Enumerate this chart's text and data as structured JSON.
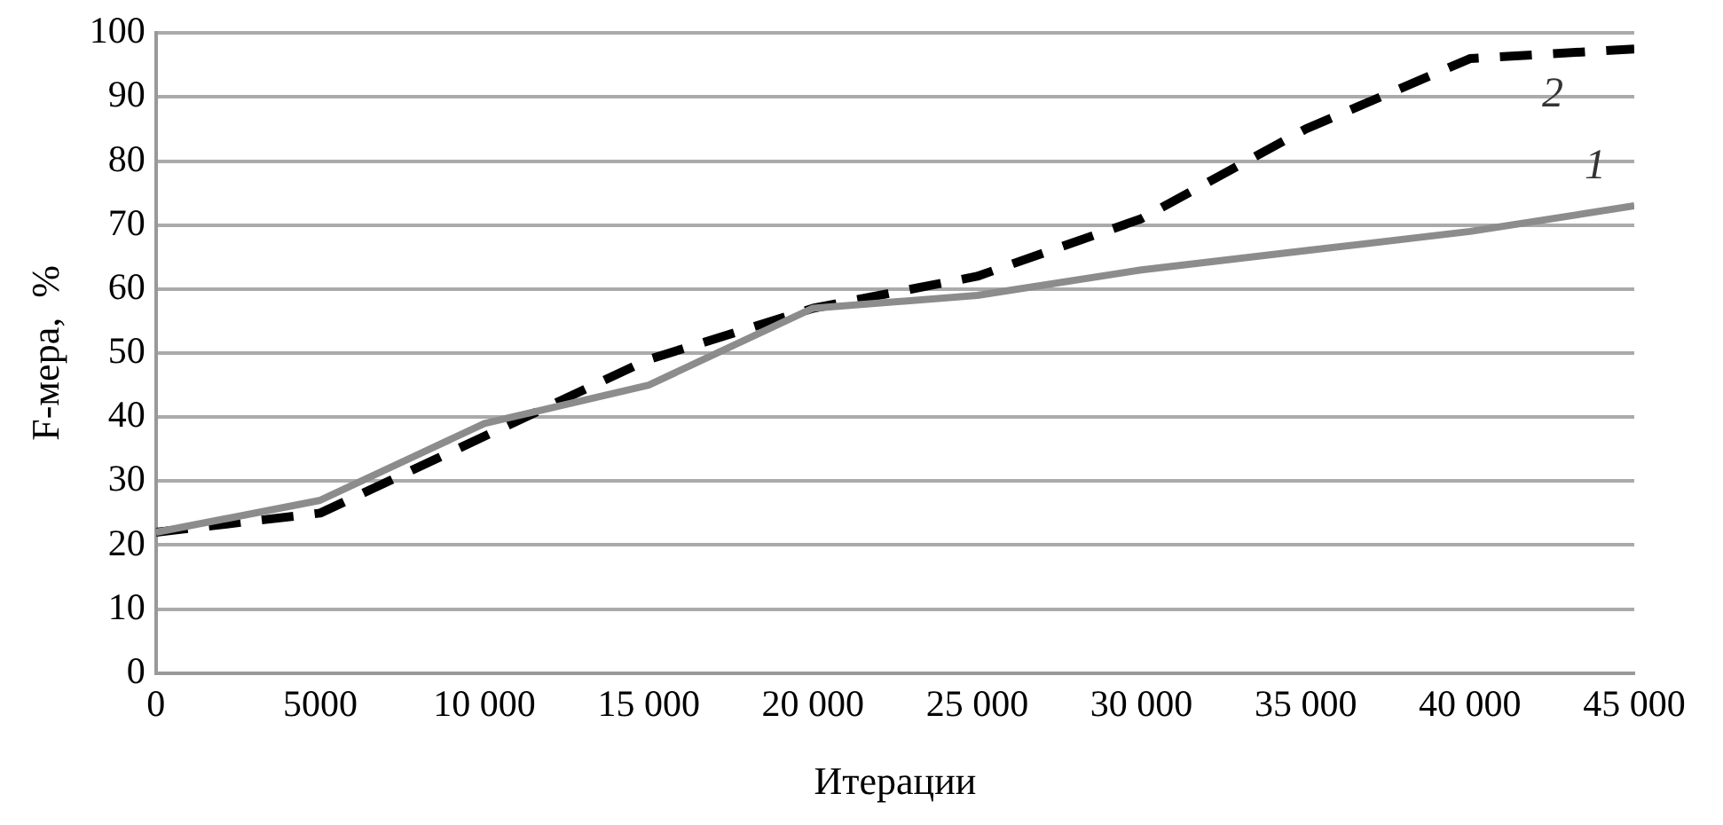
{
  "chart_data": {
    "type": "line",
    "xlabel": "Итерации",
    "ylabel": "F-мера,  %",
    "x": [
      0,
      5000,
      10000,
      15000,
      20000,
      25000,
      30000,
      35000,
      40000,
      45000
    ],
    "series": [
      {
        "name": "1",
        "color": "#8c8c8c",
        "line_style": "solid",
        "values": [
          22,
          27,
          39,
          45,
          57,
          59,
          63,
          66,
          69,
          73
        ]
      },
      {
        "name": "2",
        "color": "#000000",
        "line_style": "dashed",
        "values": [
          22,
          25,
          37,
          49,
          57,
          62,
          71,
          85,
          96,
          97.5
        ]
      }
    ],
    "xlim": [
      0,
      45000
    ],
    "xticks": [
      0,
      5000,
      {
        "value": 10000,
        "label": "10 000"
      },
      {
        "value": 15000,
        "label": "15 000"
      },
      {
        "value": 20000,
        "label": "20 000"
      },
      {
        "value": 25000,
        "label": "25 000"
      },
      {
        "value": 30000,
        "label": "30 000"
      },
      {
        "value": 35000,
        "label": "35 000"
      },
      {
        "value": 40000,
        "label": "40 000"
      },
      {
        "value": 45000,
        "label": "45 000"
      }
    ],
    "ylim": [
      0,
      100
    ],
    "yticks": [
      0,
      10,
      20,
      30,
      40,
      50,
      60,
      70,
      80,
      90,
      100
    ],
    "grid": "y",
    "legend": false,
    "marker": "none"
  }
}
